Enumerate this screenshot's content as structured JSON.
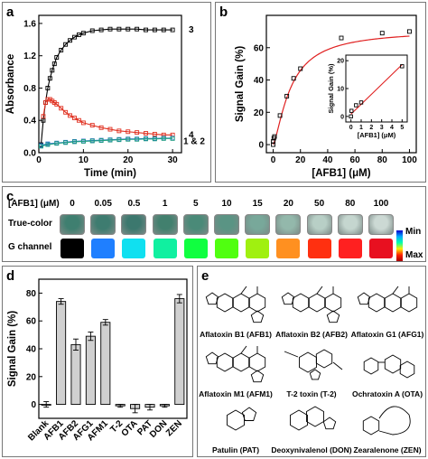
{
  "panels": {
    "a": "a",
    "b": "b",
    "c": "c",
    "d": "d",
    "e": "e"
  },
  "chart_data": [
    {
      "panel": "a",
      "type": "line",
      "xlabel": "Time (min)",
      "ylabel": "Absorbance",
      "xlim": [
        0,
        32
      ],
      "ylim": [
        0,
        1.7
      ],
      "xticks": [
        0,
        10,
        20,
        30
      ],
      "yticks": [
        0.0,
        0.4,
        0.8,
        1.2,
        1.6
      ],
      "series": [
        {
          "name": "3",
          "color": "#000000",
          "marker": "square",
          "x": [
            0.5,
            1,
            1.5,
            2,
            2.5,
            3,
            3.5,
            4,
            5,
            6,
            7,
            8,
            9,
            10,
            12,
            14,
            16,
            18,
            20,
            22,
            24,
            26,
            28,
            30
          ],
          "y": [
            0.1,
            0.4,
            0.62,
            0.8,
            0.92,
            1.02,
            1.1,
            1.18,
            1.27,
            1.34,
            1.39,
            1.43,
            1.46,
            1.48,
            1.51,
            1.52,
            1.53,
            1.53,
            1.53,
            1.53,
            1.52,
            1.52,
            1.52,
            1.52
          ]
        },
        {
          "name": "4",
          "color": "#e03020",
          "marker": "square",
          "x": [
            1,
            1.5,
            2,
            2.5,
            3,
            3.5,
            4,
            5,
            6,
            7,
            8,
            9,
            10,
            12,
            14,
            16,
            18,
            20,
            22,
            24,
            26,
            28,
            30
          ],
          "y": [
            0.45,
            0.62,
            0.66,
            0.66,
            0.64,
            0.62,
            0.6,
            0.55,
            0.5,
            0.46,
            0.43,
            0.4,
            0.37,
            0.34,
            0.31,
            0.29,
            0.27,
            0.26,
            0.25,
            0.24,
            0.23,
            0.22,
            0.22
          ]
        },
        {
          "name": "1",
          "color": "#2060d0",
          "marker": "square",
          "x": [
            0.5,
            2,
            4,
            6,
            8,
            10,
            12,
            14,
            16,
            18,
            20,
            22,
            24,
            26,
            28,
            30
          ],
          "y": [
            0.09,
            0.11,
            0.12,
            0.13,
            0.14,
            0.145,
            0.15,
            0.155,
            0.16,
            0.165,
            0.17,
            0.17,
            0.175,
            0.175,
            0.18,
            0.18
          ]
        },
        {
          "name": "2",
          "color": "#20a080",
          "marker": "square",
          "x": [
            0.5,
            2,
            4,
            6,
            8,
            10,
            12,
            14,
            16,
            18,
            20,
            22,
            24,
            26,
            28,
            30
          ],
          "y": [
            0.08,
            0.1,
            0.115,
            0.125,
            0.135,
            0.14,
            0.145,
            0.15,
            0.155,
            0.16,
            0.165,
            0.165,
            0.17,
            0.17,
            0.175,
            0.175
          ]
        }
      ],
      "annotations": [
        "3",
        "4",
        "1 & 2"
      ]
    },
    {
      "panel": "b",
      "type": "scatter",
      "xlabel": "[AFB1] (μM)",
      "ylabel": "Signal Gain (%)",
      "xlim": [
        -5,
        105
      ],
      "ylim": [
        -5,
        80
      ],
      "xticks": [
        0,
        20,
        40,
        60,
        80,
        100
      ],
      "yticks": [
        0,
        20,
        40,
        60
      ],
      "series": [
        {
          "name": "data",
          "color": "#000000",
          "marker": "square",
          "x": [
            0,
            0.05,
            0.5,
            1,
            5,
            10,
            15,
            20,
            50,
            80,
            100
          ],
          "y": [
            0,
            2,
            4,
            5,
            18,
            30,
            41,
            47,
            66,
            69,
            70
          ]
        }
      ],
      "fit_color": "#e02020",
      "inset": {
        "xlabel": "[AFB1] (μM)",
        "ylabel": "Signal Gain (%)",
        "xlim": [
          -0.5,
          5.5
        ],
        "ylim": [
          -2,
          22
        ],
        "xticks": [
          0,
          1,
          2,
          3,
          4,
          5
        ],
        "yticks": [
          0,
          10,
          20
        ],
        "x": [
          0,
          0.05,
          0.5,
          1,
          5
        ],
        "y": [
          0,
          2,
          4,
          5,
          18
        ]
      }
    },
    {
      "panel": "d",
      "type": "bar",
      "ylabel": "Signal Gain (%)",
      "ylim": [
        -10,
        90
      ],
      "yticks": [
        0,
        20,
        40,
        60,
        80
      ],
      "categories": [
        "Blank",
        "AFB1",
        "AFB2",
        "AFG1",
        "AFM1",
        "T-2",
        "OTA",
        "PAT",
        "DON",
        "ZEN"
      ],
      "values": [
        0,
        74,
        43,
        49,
        59,
        -1,
        -3,
        -2,
        -1,
        76
      ],
      "errors": [
        2,
        2,
        4,
        3,
        2,
        1,
        3,
        2,
        1,
        3
      ],
      "bar_color": "#d0d0d0"
    }
  ],
  "panel_c": {
    "row_label_conc": "[AFB1] (μM)",
    "concentrations": [
      "0",
      "0.05",
      "0.5",
      "1",
      "5",
      "10",
      "15",
      "20",
      "50",
      "80",
      "100"
    ],
    "row_label_true": "True-color",
    "row_label_g": "G channel",
    "true_colors": [
      "#3f7f70",
      "#3e7c70",
      "#3c786e",
      "#42806e",
      "#4a8a78",
      "#5a9484",
      "#78a89a",
      "#93b8ab",
      "#b8cfc6",
      "#c5d6cf",
      "#ccd9d4"
    ],
    "g_colors": [
      "#000000",
      "#1f7fff",
      "#10e0f0",
      "#10f0a0",
      "#10ff40",
      "#50ff10",
      "#a0f010",
      "#ff9020",
      "#ff3010",
      "#ff2020",
      "#e81020"
    ],
    "colorbar_min": "Min",
    "colorbar_max": "Max"
  },
  "panel_e": {
    "molecules": [
      "Aflatoxin B1 (AFB1)",
      "Aflatoxin B2 (AFB2)",
      "Aflatoxin G1 (AFG1)",
      "Aflatoxin M1 (AFM1)",
      "T-2 toxin (T-2)",
      "Ochratoxin A (OTA)",
      "Patulin (PAT)",
      "Deoxynivalenol (DON)",
      "Zearalenone (ZEN)"
    ]
  }
}
